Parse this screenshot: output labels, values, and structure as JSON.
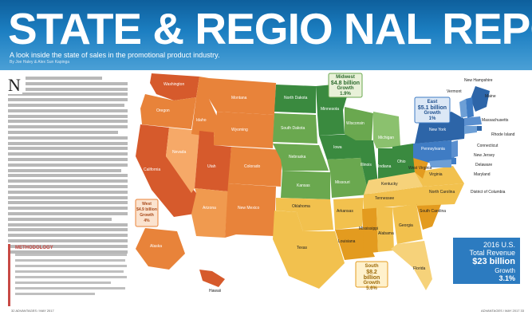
{
  "header": {
    "title": "STATE & REGIO NAL REPORT",
    "subtitle": "A look inside the state of sales in the promotional product industry.",
    "byline": "By Joe Haley & Alex Sun Kapinga"
  },
  "article": {
    "dropcap": "N",
    "sidebar_title": "METHODOLOGY"
  },
  "footer": {
    "left": "32  ADVANTAGES / MAY 2017",
    "right": "ADVANTAGES / MAY 2017  33"
  },
  "colors": {
    "west": "#e8833a",
    "midwest": "#6aa84f",
    "south": "#f2c14e",
    "east": "#3f7cc4",
    "banner": "#1c7fc2"
  },
  "regions": {
    "west": {
      "name": "West",
      "revenue": "$4.9 billion",
      "growth_label": "Growth",
      "growth": "4%"
    },
    "midwest": {
      "name": "Midwest",
      "revenue": "$4.8 billion",
      "growth_label": "Growth",
      "growth": "1.9%"
    },
    "south": {
      "name": "South",
      "revenue": "$8.2 billion",
      "growth_label": "Growth",
      "growth": "5.6%"
    },
    "east": {
      "name": "East",
      "revenue": "$5.1 billion",
      "growth_label": "Growth",
      "growth": "1%"
    }
  },
  "total": {
    "line1": "2016 U.S.",
    "line2": "Total Revenue",
    "value": "$23 billion",
    "growth_label": "Growth",
    "growth": "3.1%"
  },
  "states": {
    "washington": "Washington",
    "oregon": "Oregon",
    "california": "California",
    "nevada": "Nevada",
    "idaho": "Idaho",
    "montana": "Montana",
    "wyoming": "Wyoming",
    "utah": "Utah",
    "colorado": "Colorado",
    "arizona": "Arizona",
    "new_mexico": "New Mexico",
    "alaska": "Alaska",
    "hawaii": "Hawaii",
    "north_dakota": "North Dakota",
    "south_dakota": "South Dakota",
    "nebraska": "Nebraska",
    "kansas": "Kansas",
    "minnesota": "Minnesota",
    "iowa": "Iowa",
    "missouri": "Missouri",
    "wisconsin": "Wisconsin",
    "illinois": "Illinois",
    "michigan": "Michigan",
    "indiana": "Indiana",
    "ohio": "Ohio",
    "oklahoma": "Oklahoma",
    "texas": "Texas",
    "arkansas": "Arkansas",
    "louisiana": "Louisiana",
    "mississippi": "Mississippi",
    "alabama": "Alabama",
    "tennessee": "Tennessee",
    "kentucky": "Kentucky",
    "georgia": "Georgia",
    "florida": "Florida",
    "south_carolina": "South Carolina",
    "north_carolina": "North Carolina",
    "virginia": "Virginia",
    "west_virginia": "West Virginia",
    "pennsylvania": "Pennsylvania",
    "new_york": "New York",
    "maine": "Maine",
    "vermont": "Vermont",
    "new_hampshire": "New Hampshire",
    "massachusetts": "Massachusetts",
    "rhode_island": "Rhode Island",
    "connecticut": "Connecticut",
    "new_jersey": "New Jersey",
    "delaware": "Delaware",
    "maryland": "Maryland",
    "district_of_columbia": "District of Columbia"
  }
}
